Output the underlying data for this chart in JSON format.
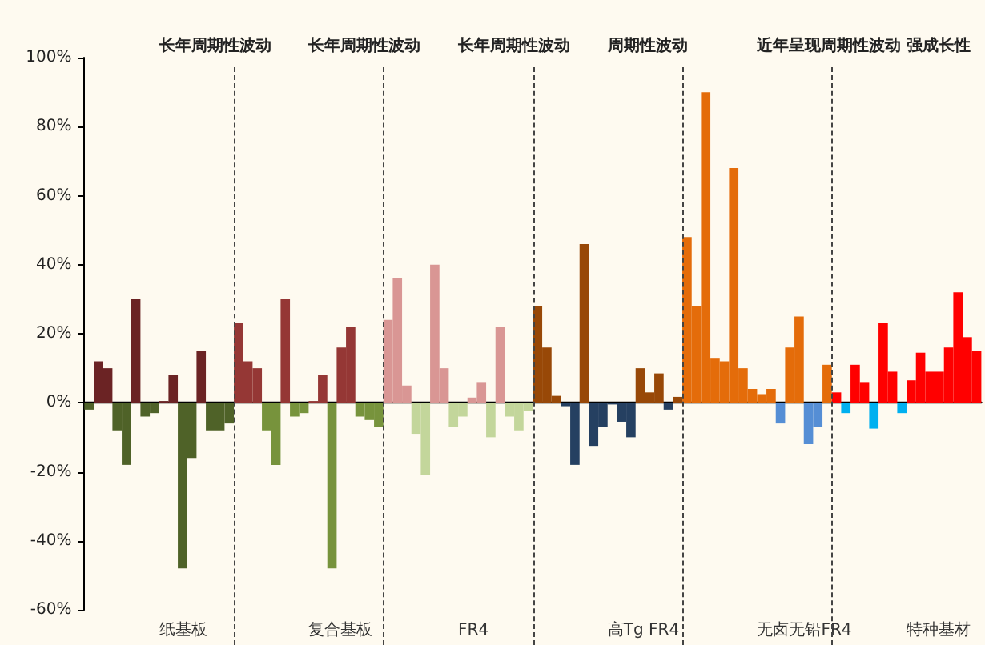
{
  "chart_data": {
    "type": "bar",
    "annotations": [
      "长年周期性波动",
      "长年周期性波动",
      "长年周期性波动",
      "周期性波动",
      "近年呈现周期性波动",
      "强成长性",
      "纸基板",
      "复合基板",
      "FR4",
      "高Tg FR4",
      "无卤无铅FR4",
      "特种基材"
    ],
    "categories": [
      null,
      null,
      null,
      null,
      null,
      null,
      null,
      null,
      null,
      null,
      null,
      null,
      null,
      null,
      null,
      null,
      null,
      null,
      null,
      null,
      null,
      null,
      null,
      null,
      null,
      null,
      null,
      null,
      null,
      null,
      null,
      null,
      null,
      null,
      null,
      null,
      null,
      null,
      null,
      null,
      null,
      null,
      null,
      null,
      null,
      null,
      null,
      null,
      null,
      null,
      null,
      null,
      null,
      null,
      null,
      null,
      null,
      null,
      null,
      null,
      null,
      null,
      null,
      null,
      null,
      null,
      null,
      null,
      null,
      null,
      null,
      null,
      null,
      null,
      null,
      null,
      null,
      null,
      null,
      null,
      null,
      null,
      null,
      null,
      null,
      null,
      null,
      null,
      null,
      null,
      null,
      null,
      null,
      null,
      null,
      null
    ],
    "values": [
      -2,
      12,
      10,
      -8,
      -18,
      30,
      -4,
      -3,
      0.5,
      8,
      -48,
      -16,
      15,
      -8,
      -8,
      -6,
      23,
      12,
      10,
      -8,
      -18,
      30,
      -4,
      -3,
      0.5,
      8,
      -48,
      16,
      22,
      -4,
      -5,
      -7,
      24,
      36,
      5,
      -9,
      -21,
      40,
      10,
      -7,
      -4,
      1.5,
      6,
      -10,
      22,
      -4,
      -8,
      -2.5,
      28,
      16,
      2,
      -1,
      -18,
      46,
      -12.5,
      -7,
      -0.5,
      -5.5,
      -10,
      10,
      3,
      8.5,
      -2,
      1.7,
      48,
      28,
      90,
      13,
      12,
      68,
      10,
      4,
      2.5,
      4,
      -6,
      16,
      25,
      -12,
      -7,
      11,
      3,
      -3,
      11,
      6,
      -7.5,
      23,
      9,
      -3,
      6.5,
      14.5,
      9,
      9,
      16,
      32,
      19,
      15
    ],
    "colors": [
      "#4f6228",
      "#6b2324",
      "#6b2324",
      "#4f6228",
      "#4f6228",
      "#6b2324",
      "#4f6228",
      "#4f6228",
      "#6b2324",
      "#6b2324",
      "#4f6228",
      "#4f6228",
      "#6b2324",
      "#4f6228",
      "#4f6228",
      "#4f6228",
      "#953735",
      "#953735",
      "#953735",
      "#77933c",
      "#77933c",
      "#953735",
      "#77933c",
      "#77933c",
      "#953735",
      "#953735",
      "#77933c",
      "#953735",
      "#953735",
      "#77933c",
      "#77933c",
      "#77933c",
      "#d99694",
      "#d99694",
      "#d99694",
      "#c3d69b",
      "#c3d69b",
      "#d99694",
      "#d99694",
      "#c3d69b",
      "#c3d69b",
      "#d99694",
      "#d99694",
      "#c3d69b",
      "#d99694",
      "#c3d69b",
      "#c3d69b",
      "#c3d69b",
      "#984807",
      "#984807",
      "#984807",
      "#254061",
      "#254061",
      "#984807",
      "#254061",
      "#254061",
      "#254061",
      "#254061",
      "#254061",
      "#984807",
      "#984807",
      "#984807",
      "#254061",
      "#984807",
      "#e46c0a",
      "#e46c0a",
      "#e46c0a",
      "#e46c0a",
      "#e46c0a",
      "#e46c0a",
      "#e46c0a",
      "#e46c0a",
      "#e46c0a",
      "#e46c0a",
      "#558ed5",
      "#e46c0a",
      "#e46c0a",
      "#558ed5",
      "#558ed5",
      "#e46c0a",
      "#ff0000",
      "#00b0f0",
      "#ff0000",
      "#ff0000",
      "#00b0f0",
      "#ff0000",
      "#ff0000",
      "#00b0f0",
      "#ff0000",
      "#ff0000",
      "#ff0000",
      "#ff0000",
      "#ff0000",
      "#ff0000",
      "#ff0000",
      "#ff0000"
    ],
    "ylim": [
      -60,
      100
    ],
    "yticks": [
      {
        "value": -60,
        "label": "-60%"
      },
      {
        "value": -40,
        "label": "-40%"
      },
      {
        "value": -20,
        "label": "-20%"
      },
      {
        "value": 0,
        "label": "0%"
      },
      {
        "value": 20,
        "label": "20%"
      },
      {
        "value": 40,
        "label": "40%"
      },
      {
        "value": 60,
        "label": "60%"
      },
      {
        "value": 80,
        "label": "80%"
      },
      {
        "value": 100,
        "label": "100%"
      }
    ],
    "tick_labels": "y"
  }
}
